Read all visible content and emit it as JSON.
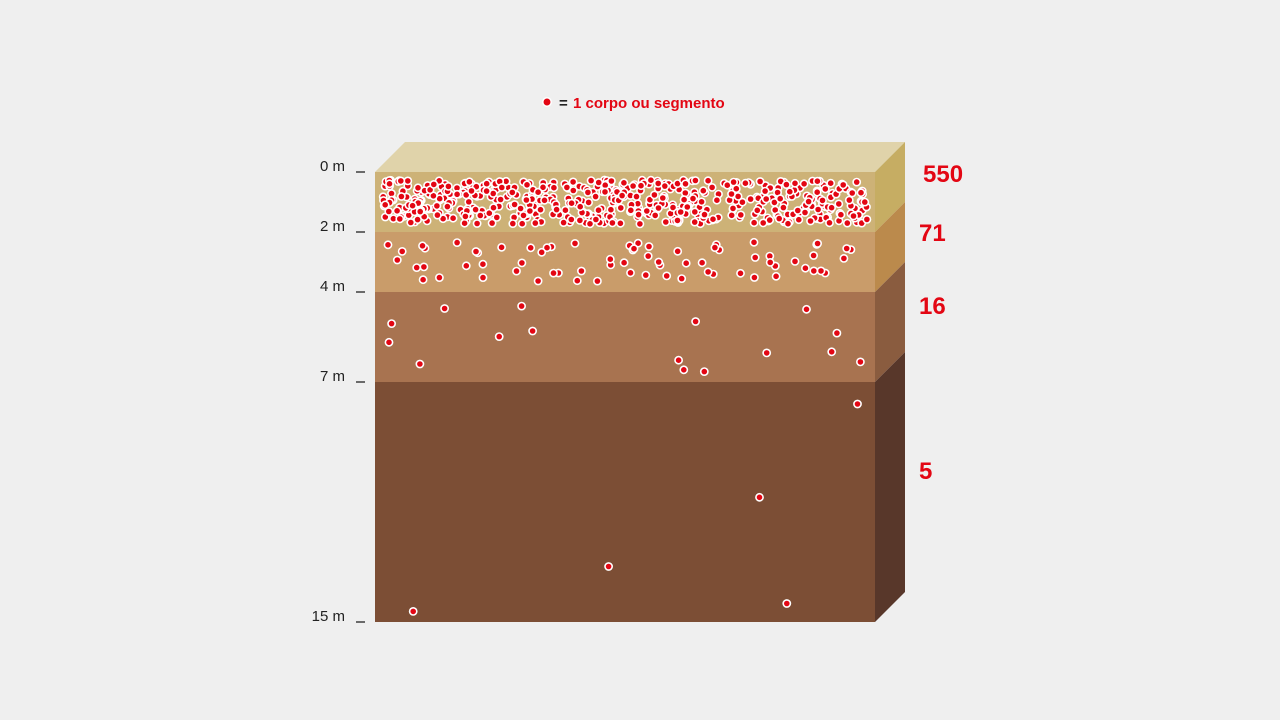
{
  "legend": {
    "equals": "=",
    "text": "1 corpo ou segmento"
  },
  "colors": {
    "accent": "#e30613",
    "dot_stroke": "#ffffff",
    "top_face": "#e0d3aa",
    "layers_front": [
      "#cdb277",
      "#c99c6a",
      "#a87350",
      "#7c4e35"
    ],
    "layers_side": [
      "#c6ad63",
      "#bb8a4c",
      "#8a5c3f",
      "#58372a"
    ]
  },
  "depth_labels": [
    "0 m",
    "2 m",
    "4 m",
    "7 m",
    "15 m"
  ],
  "layers": [
    {
      "from_m": 0,
      "to_m": 2,
      "count": 550,
      "count_label": "550"
    },
    {
      "from_m": 2,
      "to_m": 4,
      "count": 71,
      "count_label": "71"
    },
    {
      "from_m": 4,
      "to_m": 7,
      "count": 16,
      "count_label": "16"
    },
    {
      "from_m": 7,
      "to_m": 15,
      "count": 5,
      "count_label": "5"
    }
  ]
}
